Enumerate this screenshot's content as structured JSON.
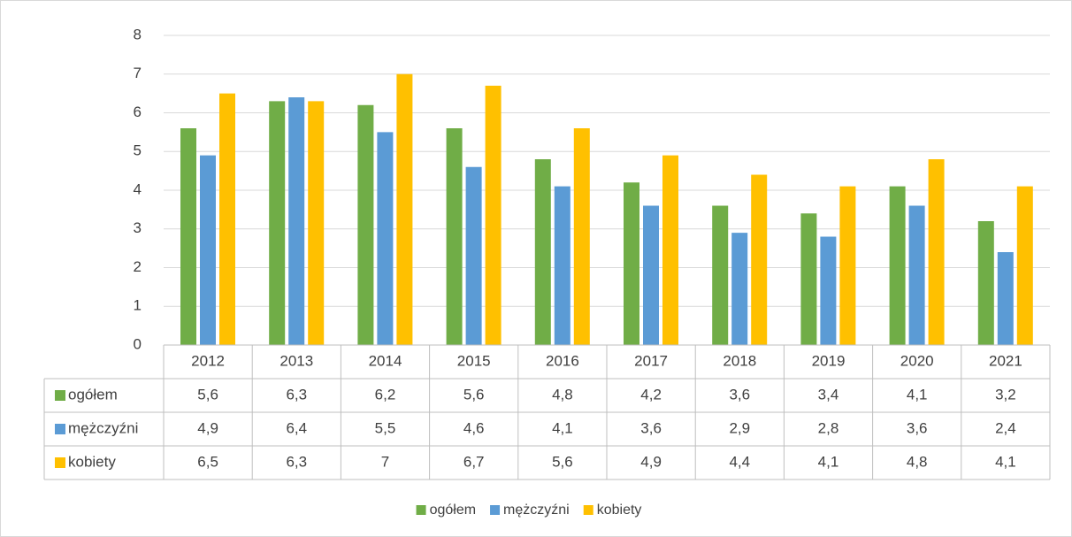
{
  "chart_data": {
    "type": "bar",
    "categories": [
      "2012",
      "2013",
      "2014",
      "2015",
      "2016",
      "2017",
      "2018",
      "2019",
      "2020",
      "2021"
    ],
    "series": [
      {
        "name": "ogółem",
        "color": "#70ad47",
        "values": [
          5.6,
          6.3,
          6.2,
          5.6,
          4.8,
          4.2,
          3.6,
          3.4,
          4.1,
          3.2
        ],
        "value_labels": [
          "5,6",
          "6,3",
          "6,2",
          "5,6",
          "4,8",
          "4,2",
          "3,6",
          "3,4",
          "4,1",
          "3,2"
        ]
      },
      {
        "name": "mężczyźni",
        "color": "#5b9bd5",
        "values": [
          4.9,
          6.4,
          5.5,
          4.6,
          4.1,
          3.6,
          2.9,
          2.8,
          3.6,
          2.4
        ],
        "value_labels": [
          "4,9",
          "6,4",
          "5,5",
          "4,6",
          "4,1",
          "3,6",
          "2,9",
          "2,8",
          "3,6",
          "2,4"
        ]
      },
      {
        "name": "kobiety",
        "color": "#ffc000",
        "values": [
          6.5,
          6.3,
          7,
          6.7,
          5.6,
          4.9,
          4.4,
          4.1,
          4.8,
          4.1
        ],
        "value_labels": [
          "6,5",
          "6,3",
          "7",
          "6,7",
          "5,6",
          "4,9",
          "4,4",
          "4,1",
          "4,8",
          "4,1"
        ]
      }
    ],
    "ylim": [
      0,
      8
    ],
    "yticks": [
      0,
      1,
      2,
      3,
      4,
      5,
      6,
      7,
      8
    ],
    "grid": true,
    "legend": "bottom"
  }
}
